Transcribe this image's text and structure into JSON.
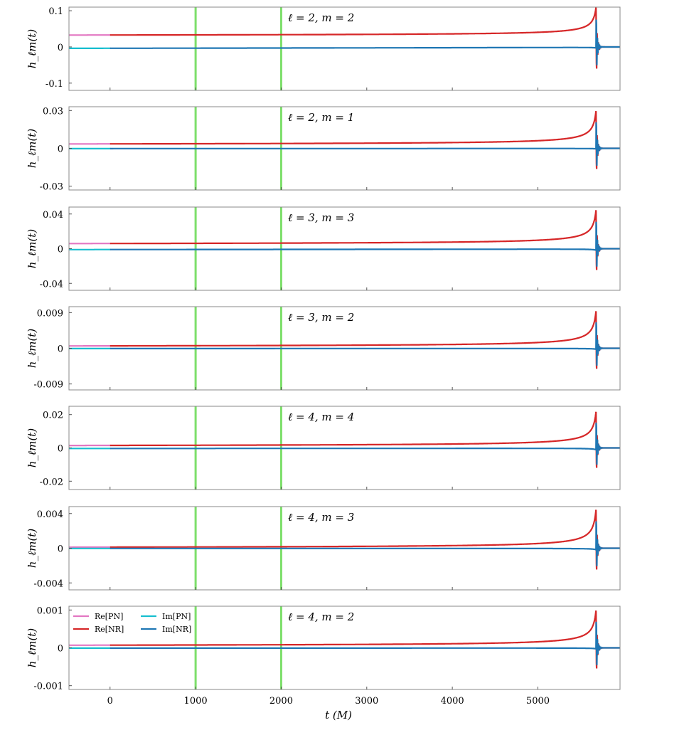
{
  "chart_data": {
    "type": "line",
    "xlabel": "t (M)",
    "ylabel": "h_ℓm(t)",
    "xlim": [
      -480,
      5960
    ],
    "xticks": [
      0,
      1000,
      2000,
      3000,
      4000,
      5000
    ],
    "vertical_lines": [
      1000,
      2000
    ],
    "legend": {
      "placement": "top-left of last panel",
      "entries": [
        "Re[PN]",
        "Re[NR]",
        "Im[PN]",
        "Im[NR]"
      ]
    },
    "series_colors": {
      "Re[PN]": "#e377c2",
      "Re[NR]": "#d62728",
      "Im[PN]": "#17becf",
      "Im[NR]": "#1f77b4"
    },
    "pn_end_time": 0,
    "merger_time": 5680,
    "panels": [
      {
        "l": 2,
        "m": 2,
        "title": "ℓ = 2, m = 2",
        "ylim": [
          -0.12,
          0.11
        ],
        "yticks": [
          "0.1",
          "0",
          "-0.1"
        ],
        "ytick_values": [
          0.1,
          0,
          -0.1
        ],
        "early_amplitude": 0.033,
        "peak_amplitude": 0.11,
        "early_period": 90
      },
      {
        "l": 2,
        "m": 1,
        "title": "ℓ = 2, m = 1",
        "ylim": [
          -0.033,
          0.033
        ],
        "yticks": [
          "0.03",
          "0",
          "-0.03"
        ],
        "ytick_values": [
          0.03,
          0,
          -0.03
        ],
        "early_amplitude": 0.0035,
        "peak_amplitude": 0.03,
        "early_period": 180
      },
      {
        "l": 3,
        "m": 3,
        "title": "ℓ = 3, m = 3",
        "ylim": [
          -0.048,
          0.048
        ],
        "yticks": [
          "0.04",
          "0",
          "-0.04"
        ],
        "ytick_values": [
          0.04,
          0,
          -0.04
        ],
        "early_amplitude": 0.006,
        "peak_amplitude": 0.045,
        "early_period": 60
      },
      {
        "l": 3,
        "m": 2,
        "title": "ℓ = 3, m = 2",
        "ylim": [
          -0.0105,
          0.0105
        ],
        "yticks": [
          "0.009",
          "0",
          "-0.009"
        ],
        "ytick_values": [
          0.009,
          0,
          -0.009
        ],
        "early_amplitude": 0.0006,
        "peak_amplitude": 0.0095,
        "early_period": 90
      },
      {
        "l": 4,
        "m": 4,
        "title": "ℓ = 4, m = 4",
        "ylim": [
          -0.025,
          0.025
        ],
        "yticks": [
          "0.02",
          "0",
          "-0.02"
        ],
        "ytick_values": [
          0.02,
          0,
          -0.02
        ],
        "early_amplitude": 0.0015,
        "peak_amplitude": 0.022,
        "early_period": 45
      },
      {
        "l": 4,
        "m": 3,
        "title": "ℓ = 4, m = 3",
        "ylim": [
          -0.0048,
          0.0048
        ],
        "yticks": [
          "0.004",
          "0",
          "-0.004"
        ],
        "ytick_values": [
          0.004,
          0,
          -0.004
        ],
        "early_amplitude": 0.00012,
        "peak_amplitude": 0.0045,
        "early_period": 60
      },
      {
        "l": 4,
        "m": 2,
        "title": "ℓ = 4, m = 2",
        "ylim": [
          -0.0011,
          0.0011
        ],
        "yticks": [
          "0.001",
          "0",
          "-0.001"
        ],
        "ytick_values": [
          0.001,
          0,
          -0.001
        ],
        "early_amplitude": 7e-05,
        "peak_amplitude": 0.001,
        "early_period": 90
      }
    ]
  }
}
